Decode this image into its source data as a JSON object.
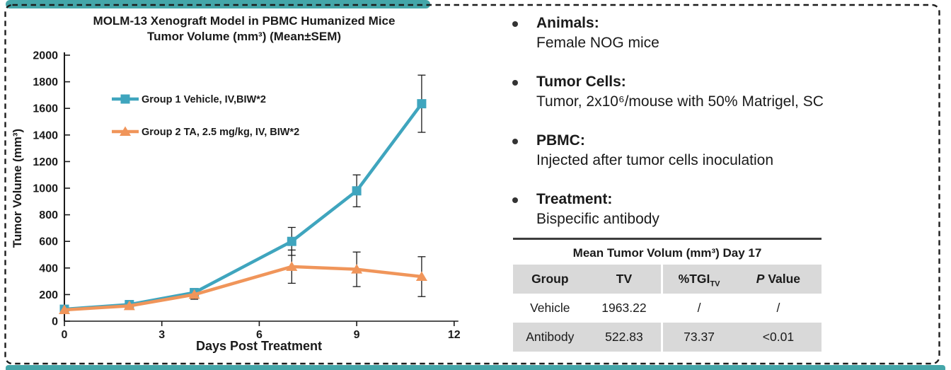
{
  "page": {
    "accent_teal": "#44A6A9",
    "dash_color": "#1c1c1c",
    "background": "#ffffff"
  },
  "chart_data": {
    "type": "line",
    "title_line1": "MOLM-13 Xenograft Model in PBMC Humanized Mice",
    "title_line2": "Tumor Volume (mm³) (Mean±SEM)",
    "xlabel": "Days Post Treatment",
    "ylabel": "Tumor Volume (mm³)",
    "x": [
      0,
      2,
      4,
      7,
      9,
      11
    ],
    "xlim": [
      0,
      12
    ],
    "xticks": [
      0,
      3,
      6,
      9,
      12
    ],
    "ylim": [
      0,
      2000
    ],
    "ytick_step": 200,
    "grid": false,
    "legend_position": "upper-left-inside",
    "series": [
      {
        "name": "Group 1 Vehicle, IV,BIW*2",
        "color": "#3FA5BE",
        "marker": "square",
        "values": [
          90,
          125,
          215,
          600,
          980,
          1635
        ],
        "errors": [
          15,
          20,
          30,
          105,
          120,
          215
        ]
      },
      {
        "name": "Group 2 TA, 2.5 mg/kg, IV, BIW*2",
        "color": "#F0955A",
        "marker": "triangle",
        "values": [
          85,
          115,
          200,
          410,
          390,
          335
        ],
        "errors": [
          12,
          18,
          35,
          125,
          130,
          150
        ]
      }
    ]
  },
  "bullets": [
    {
      "heading": "Animals:",
      "body": "Female NOG mice"
    },
    {
      "heading": "Tumor Cells:",
      "body": "Tumor, 2x10⁶/mouse with 50% Matrigel, SC"
    },
    {
      "heading": "PBMC:",
      "body": "Injected after tumor cells inoculation"
    },
    {
      "heading": "Treatment:",
      "body": "Bispecific antibody"
    }
  ],
  "table": {
    "title": "Mean Tumor Volum (mm³) Day 17",
    "columns": [
      {
        "text": "Group"
      },
      {
        "text": "TV"
      },
      {
        "text": "%TGI",
        "sub": "TV"
      },
      {
        "italic": "P",
        "text": " Value"
      }
    ],
    "rows": [
      {
        "cells": [
          "Vehicle",
          "1963.22",
          "/",
          "/"
        ],
        "shaded": false
      },
      {
        "cells": [
          "Antibody",
          "522.83",
          "73.37",
          "<0.01"
        ],
        "shaded": true
      }
    ],
    "header_bg": "#D9D9D9",
    "row_shade": "#D9D9D9"
  }
}
